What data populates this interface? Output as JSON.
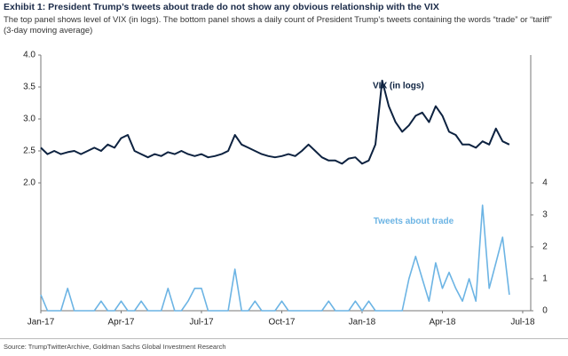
{
  "chart_data": {
    "type": "line",
    "title": "Exhibit 1: President Trump’s tweets about trade do not show any obvious relationship with the VIX",
    "subtitle": "The top panel shows level of VIX (in logs). The bottom panel shows a daily count of President Trump’s tweets containing the words “trade” or “tariff” (3-day moving average)",
    "source": "Source: TrumpTwitterArchive, Goldman Sachs Global Investment Research",
    "x": [
      0,
      0.25,
      0.5,
      0.75,
      1,
      1.25,
      1.5,
      1.75,
      2,
      2.25,
      2.5,
      2.75,
      3,
      3.25,
      3.5,
      3.75,
      4,
      4.25,
      4.5,
      4.75,
      5,
      5.25,
      5.5,
      5.75,
      6,
      6.25,
      6.5,
      6.75,
      7,
      7.25,
      7.5,
      7.75,
      8,
      8.25,
      8.5,
      8.75,
      9,
      9.25,
      9.5,
      9.75,
      10,
      10.25,
      10.5,
      10.75,
      11,
      11.25,
      11.5,
      11.75,
      12,
      12.25,
      12.5,
      12.75,
      13,
      13.25,
      13.5,
      13.75,
      14,
      14.25,
      14.5,
      14.75,
      15,
      15.25,
      15.5,
      15.75,
      16,
      16.25,
      16.5,
      16.75,
      17,
      17.25,
      17.5
    ],
    "xlim": [
      0,
      18.3
    ],
    "xticks": [
      {
        "value": 0,
        "label": "Jan-17"
      },
      {
        "value": 3,
        "label": "Apr-17"
      },
      {
        "value": 6,
        "label": "Jul-17"
      },
      {
        "value": 9,
        "label": "Oct-17"
      },
      {
        "value": 12,
        "label": "Jan-18"
      },
      {
        "value": 15,
        "label": "Apr-18"
      },
      {
        "value": 18,
        "label": "Jul-18"
      }
    ],
    "ylim": [
      0,
      4
    ],
    "yticks": [
      {
        "value": 2,
        "label": "2.0"
      },
      {
        "value": 2.5,
        "label": "2.5"
      },
      {
        "value": 3,
        "label": "3.0"
      },
      {
        "value": 3.5,
        "label": "3.5"
      },
      {
        "value": 4,
        "label": "4.0"
      }
    ],
    "y2lim": [
      0,
      8
    ],
    "y2ticks": [
      0,
      1,
      2,
      3,
      4
    ],
    "grid": false,
    "series": [
      {
        "name": "VIX (in logs)",
        "color": "#0d2240",
        "values": [
          2.55,
          2.45,
          2.5,
          2.45,
          2.48,
          2.5,
          2.45,
          2.5,
          2.55,
          2.5,
          2.6,
          2.55,
          2.7,
          2.75,
          2.5,
          2.45,
          2.4,
          2.45,
          2.42,
          2.48,
          2.45,
          2.5,
          2.45,
          2.42,
          2.45,
          2.4,
          2.42,
          2.45,
          2.5,
          2.75,
          2.6,
          2.55,
          2.5,
          2.45,
          2.42,
          2.4,
          2.42,
          2.45,
          2.42,
          2.5,
          2.6,
          2.5,
          2.4,
          2.35,
          2.35,
          2.3,
          2.38,
          2.4,
          2.3,
          2.35,
          2.6,
          3.6,
          3.2,
          2.95,
          2.8,
          2.9,
          3.05,
          3.1,
          2.95,
          3.2,
          3.05,
          2.8,
          2.75,
          2.6,
          2.6,
          2.55,
          2.65,
          2.6,
          2.85,
          2.65,
          2.6
        ]
      },
      {
        "name": "Tweets about trade",
        "color": "#6cb4e4",
        "axis": "y2",
        "values": [
          0.5,
          0,
          0,
          0,
          0.7,
          0,
          0,
          0,
          0,
          0.3,
          0,
          0,
          0.3,
          0,
          0,
          0.3,
          0,
          0,
          0,
          0.7,
          0,
          0,
          0.3,
          0.7,
          0.7,
          0,
          0,
          0,
          0,
          1.3,
          0,
          0,
          0.3,
          0,
          0,
          0,
          0.3,
          0,
          0,
          0,
          0,
          0,
          0,
          0.3,
          0,
          0,
          0,
          0.3,
          0,
          0.3,
          0,
          0,
          0,
          0,
          0,
          1.0,
          1.7,
          1.0,
          0.3,
          1.5,
          0.7,
          1.2,
          0.7,
          0.3,
          1.0,
          0.3,
          3.3,
          0.7,
          1.5,
          2.3,
          0.5
        ]
      }
    ]
  }
}
